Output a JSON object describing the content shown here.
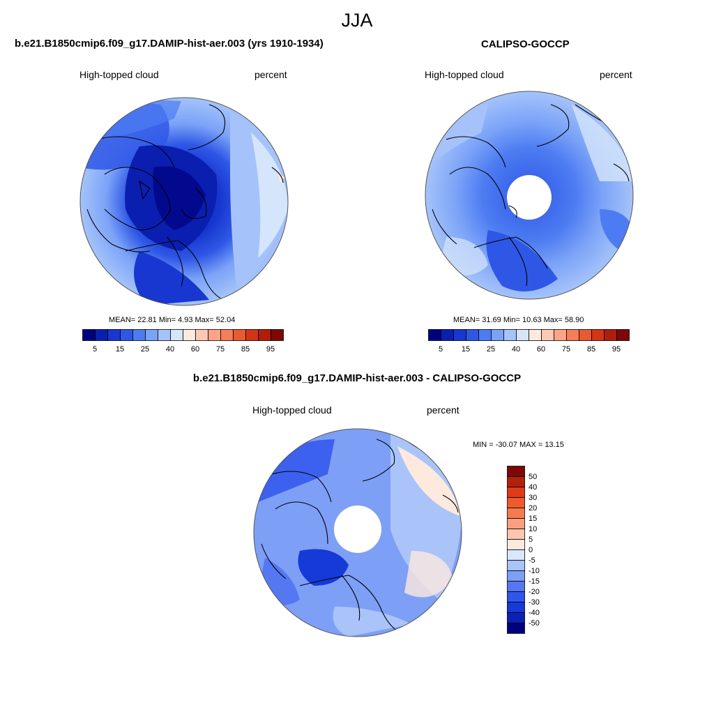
{
  "season": "JJA",
  "colors": {
    "hbar": [
      "#00007f",
      "#0a1fb0",
      "#1737d0",
      "#2f57e6",
      "#4d7cf2",
      "#7aa2f7",
      "#a5c3fa",
      "#d5e5fb",
      "#fde9de",
      "#fdc9b2",
      "#fca487",
      "#f67d58",
      "#ea5a31",
      "#d23617",
      "#b01d0a",
      "#7e0805"
    ],
    "vbar": [
      "#00007f",
      "#0a22b6",
      "#153ad8",
      "#2f56ec",
      "#5578f2",
      "#7d9ff6",
      "#aac4fa",
      "#d9e7fc",
      "#fde9de",
      "#fcc7ae",
      "#fba07f",
      "#f57a52",
      "#ef5a2c",
      "#e03a16",
      "#b4210a",
      "#7e0805"
    ],
    "land": "#000000"
  },
  "panels": {
    "model": {
      "title": "b.e21.B1850cmip6.f09_g17.DAMIP-hist-aer.003 (yrs 1910-1934)",
      "variable": "High-topped cloud",
      "units": "percent",
      "stats": "MEAN=  22.81  Min=   4.93  Max=  52.04",
      "colorbar_labels": [
        "5",
        "15",
        "25",
        "40",
        "60",
        "75",
        "85",
        "95"
      ]
    },
    "obs": {
      "title": "CALIPSO-GOCCP",
      "variable": "High-topped cloud",
      "units": "percent",
      "stats": "MEAN=  31.69  Min=  10.63  Max=  58.90",
      "colorbar_labels": [
        "5",
        "15",
        "25",
        "40",
        "60",
        "75",
        "85",
        "95"
      ]
    },
    "diff": {
      "title": "b.e21.B1850cmip6.f09_g17.DAMIP-hist-aer.003 - CALIPSO-GOCCP",
      "variable": "High-topped cloud",
      "units": "percent",
      "stats": "MIN = -30.07 MAX =  13.15",
      "colorbar_labels": [
        "50",
        "40",
        "30",
        "20",
        "15",
        "10",
        "5",
        "0",
        "-5",
        "-10",
        "-15",
        "-20",
        "-30",
        "-40",
        "-50"
      ]
    }
  }
}
